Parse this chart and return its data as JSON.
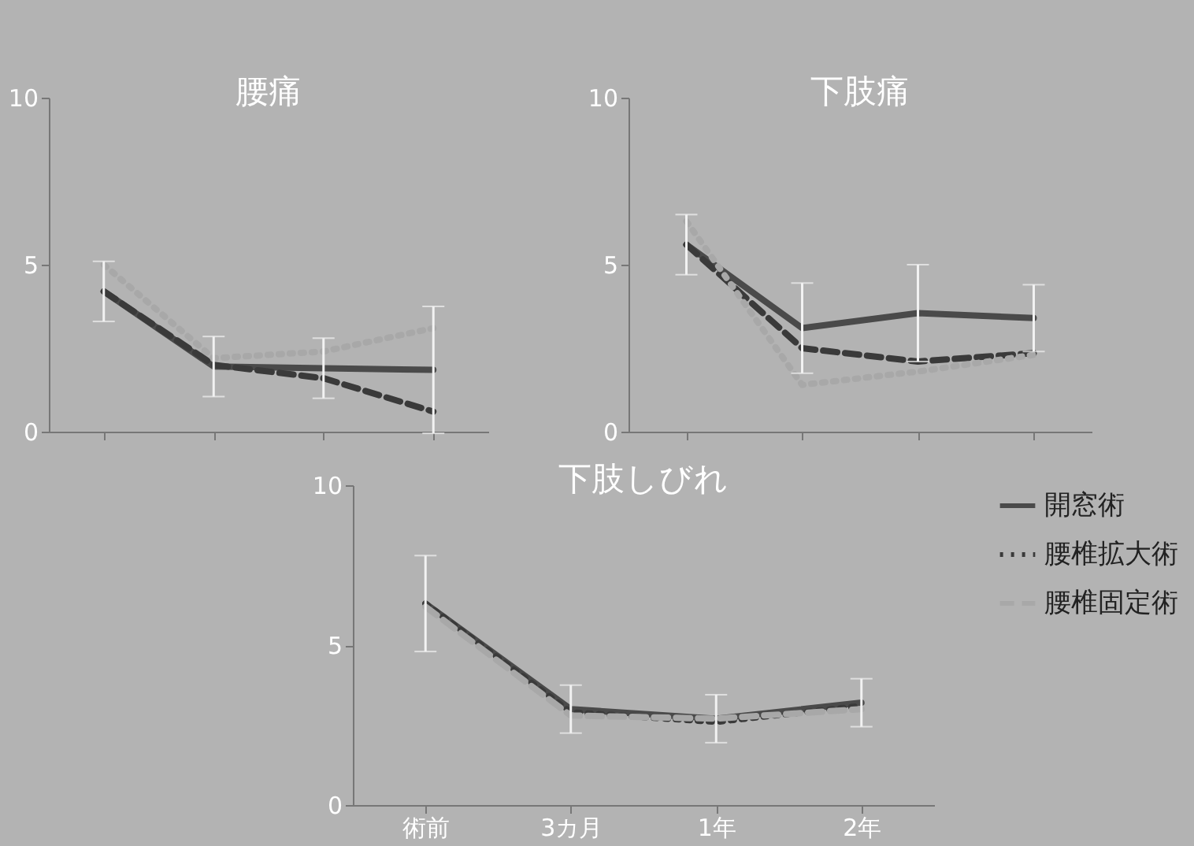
{
  "chart_data": [
    {
      "type": "line",
      "title": "腰痛",
      "categories": [
        null,
        null,
        null,
        null
      ],
      "ylim": [
        0,
        10
      ],
      "yticks": [
        0,
        5,
        10
      ],
      "tick_labels": "y",
      "grid": false,
      "legend": false,
      "series": [
        {
          "color": "#4a4a4a",
          "line_style": "solid",
          "values": [
            4.2,
            1.95,
            1.9,
            1.85
          ],
          "errors": [
            0.9,
            0.9,
            0.9,
            1.9
          ]
        },
        {
          "color": "#3a3a3a",
          "line_style": "dashed",
          "values": [
            4.2,
            2.0,
            1.6,
            0.6
          ]
        },
        {
          "color": "#a8a8a8",
          "line_style": "dotted",
          "values": [
            5.0,
            2.2,
            2.4,
            3.1
          ]
        }
      ]
    },
    {
      "type": "line",
      "title": "下肢痛",
      "categories": [
        null,
        null,
        null,
        null
      ],
      "ylim": [
        0,
        10
      ],
      "yticks": [
        0,
        5,
        10
      ],
      "tick_labels": "y",
      "grid": false,
      "legend": false,
      "series": [
        {
          "color": "#4a4a4a",
          "line_style": "solid",
          "values": [
            5.6,
            3.1,
            3.55,
            3.4
          ],
          "errors": [
            0.9,
            1.35,
            1.45,
            1.0
          ]
        },
        {
          "color": "#3a3a3a",
          "line_style": "dashed",
          "values": [
            5.6,
            2.5,
            2.1,
            2.35
          ]
        },
        {
          "color": "#a8a8a8",
          "line_style": "dotted",
          "values": [
            6.3,
            1.4,
            1.8,
            2.3
          ]
        }
      ]
    },
    {
      "type": "line",
      "title": "下肢しびれ",
      "categories": [
        "術前",
        "3カ月",
        "1年",
        "2年"
      ],
      "ylim": [
        0,
        10
      ],
      "yticks": [
        0,
        5,
        10
      ],
      "grid": false,
      "legend": "right",
      "series": [
        {
          "name": "開窓術",
          "color": "#4a4a4a",
          "line_style": "solid",
          "values": [
            6.3,
            3.0,
            2.7,
            3.2
          ],
          "errors": [
            1.5,
            0.75,
            0.75,
            0.75
          ]
        },
        {
          "name": "腰椎拡大術",
          "color": "#3a3a3a",
          "line_style": "dotted",
          "values": [
            6.3,
            2.9,
            2.6,
            3.1
          ]
        },
        {
          "name": "腰椎固定術",
          "color": "#a8a8a8",
          "line_style": "dashed",
          "values": [
            6.2,
            2.8,
            2.7,
            3.0
          ]
        }
      ]
    }
  ]
}
